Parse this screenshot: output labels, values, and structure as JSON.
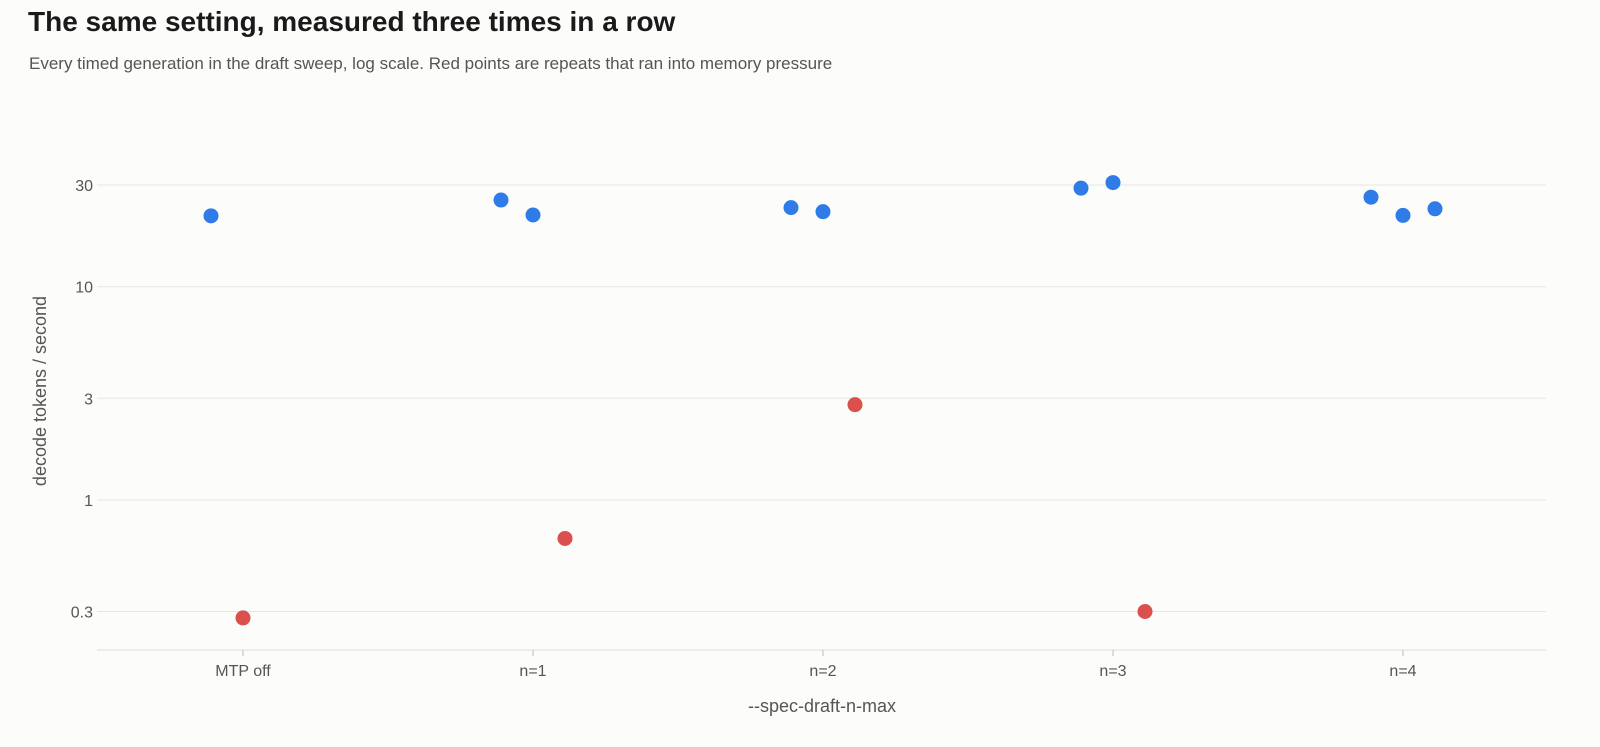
{
  "title": "The same setting, measured three times in a row",
  "subtitle": "Every timed generation in the draft sweep, log scale. Red points are repeats that ran into memory pressure",
  "colors": {
    "normal": "#2f7be8",
    "memory_pressure": "#d9504c",
    "grid": "#e6e6e6",
    "axis": "#dddddd"
  },
  "chart_data": {
    "type": "scatter",
    "xlabel": "--spec-draft-n-max",
    "ylabel": "decode tokens / second",
    "y_scale": "log",
    "ylim": [
      0.23,
      40
    ],
    "y_ticks": [
      0.3,
      1,
      3,
      10,
      30
    ],
    "y_tick_labels": [
      "0.3",
      "1",
      "3",
      "10",
      "30"
    ],
    "categories": [
      "MTP off",
      "n=1",
      "n=2",
      "n=3",
      "n=4"
    ],
    "grid": "horizontal",
    "legend": "none",
    "points": [
      {
        "category": "MTP off",
        "repeat": 1,
        "value": 21.5,
        "memory_pressure": false
      },
      {
        "category": "MTP off",
        "repeat": 2,
        "value": 0.28,
        "memory_pressure": true
      },
      {
        "category": "n=1",
        "repeat": 1,
        "value": 25.5,
        "memory_pressure": false
      },
      {
        "category": "n=1",
        "repeat": 2,
        "value": 21.7,
        "memory_pressure": false
      },
      {
        "category": "n=1",
        "repeat": 3,
        "value": 0.66,
        "memory_pressure": true
      },
      {
        "category": "n=2",
        "repeat": 1,
        "value": 23.5,
        "memory_pressure": false
      },
      {
        "category": "n=2",
        "repeat": 2,
        "value": 22.5,
        "memory_pressure": false
      },
      {
        "category": "n=2",
        "repeat": 3,
        "value": 2.8,
        "memory_pressure": true
      },
      {
        "category": "n=3",
        "repeat": 1,
        "value": 29.0,
        "memory_pressure": false
      },
      {
        "category": "n=3",
        "repeat": 2,
        "value": 30.8,
        "memory_pressure": false
      },
      {
        "category": "n=3",
        "repeat": 3,
        "value": 0.3,
        "memory_pressure": true
      },
      {
        "category": "n=4",
        "repeat": 1,
        "value": 26.3,
        "memory_pressure": false
      },
      {
        "category": "n=4",
        "repeat": 2,
        "value": 21.6,
        "memory_pressure": false
      },
      {
        "category": "n=4",
        "repeat": 3,
        "value": 23.2,
        "memory_pressure": false
      }
    ]
  }
}
